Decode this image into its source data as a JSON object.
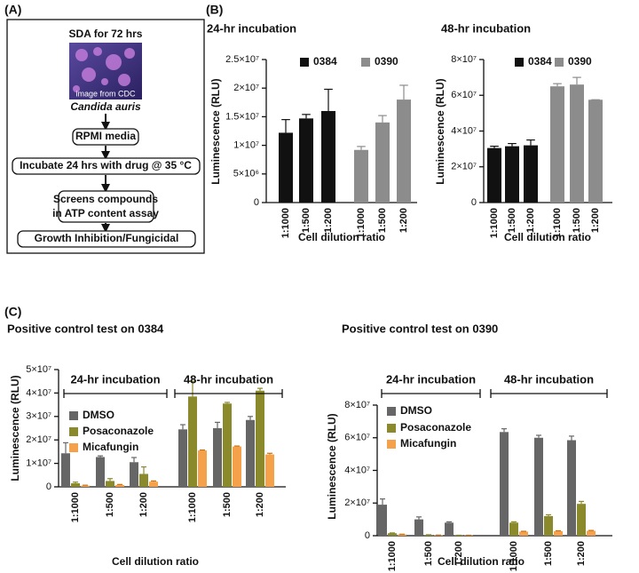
{
  "panel_labels": [
    "(A)",
    "(B)",
    "(C)"
  ],
  "diagram": {
    "nodes": [
      {
        "label": "SDA for 72 hrs"
      },
      {
        "label": "image from CDC"
      },
      {
        "label": "Candida auris"
      },
      {
        "label": "RPMI media"
      },
      {
        "label": "Incubate 24 hrs with drug @ 35 °C"
      },
      {
        "label": [
          "Screens compounds",
          "in ATP content assay"
        ]
      },
      {
        "label": "Growth Inhibition/Fungicidal"
      }
    ]
  },
  "chart_data": [
    {
      "type": "bar",
      "title": "24-hr incubation",
      "y_label": "Luminescence (RLU)",
      "x_label": "Cell dilution ratio",
      "categories": [
        "1:1000",
        "1:500",
        "1:200",
        "1:1000",
        "1:500",
        "1:200"
      ],
      "series": [
        {
          "name": "0384",
          "color": "#111111",
          "values": [
            12200000,
            14700000,
            16000000,
            null,
            null,
            null
          ],
          "errors": [
            2300000,
            700000,
            3800000,
            null,
            null,
            null
          ]
        },
        {
          "name": "0390",
          "color": "#8c8c8c",
          "values": [
            null,
            null,
            null,
            9200000,
            14000000,
            18000000
          ],
          "errors": [
            null,
            null,
            null,
            600000,
            1200000,
            2500000
          ]
        }
      ],
      "ylim": [
        0,
        25000000
      ],
      "yticks": [
        0,
        {
          "value": 5000000,
          "label": "5×10⁶"
        },
        {
          "value": 10000000,
          "label": "1×10⁷"
        },
        {
          "value": 15000000,
          "label": "1.5×10⁷"
        },
        {
          "value": 20000000,
          "label": "2×10⁷"
        },
        {
          "value": 25000000,
          "label": "2.5×10⁷"
        }
      ]
    },
    {
      "type": "bar",
      "title": "48-hr incubation",
      "y_label": "Luminescence (RLU)",
      "x_label": "Cell dilution ratio",
      "categories": [
        "1:1000",
        "1:500",
        "1:200",
        "1:1000",
        "1:500",
        "1:200"
      ],
      "series": [
        {
          "name": "0384",
          "color": "#111111",
          "values": [
            30500000,
            31500000,
            32000000,
            null,
            null,
            null
          ],
          "errors": [
            1000000,
            1500000,
            3000000,
            null,
            null,
            null
          ]
        },
        {
          "name": "0390",
          "color": "#8c8c8c",
          "values": [
            null,
            null,
            null,
            65000000,
            66000000,
            57500000
          ],
          "errors": [
            null,
            null,
            null,
            1500000,
            4000000,
            0
          ]
        }
      ],
      "ylim": [
        0,
        80000000
      ],
      "yticks": [
        0,
        {
          "value": 20000000,
          "label": "2×10⁷"
        },
        {
          "value": 40000000,
          "label": "4×10⁷"
        },
        {
          "value": 60000000,
          "label": "6×10⁷"
        },
        {
          "value": 80000000,
          "label": "8×10⁷"
        }
      ]
    },
    {
      "type": "bar",
      "title": "Positive control test on 0384",
      "y_label": "Luminescence (RLU)",
      "x_label": "Cell dilution ratio",
      "group_labels": [
        "24-hr incubation",
        "48-hr incubation"
      ],
      "categories": [
        "1:1000",
        "1:500",
        "1:200",
        "1:1000",
        "1:500",
        "1:200"
      ],
      "series": [
        {
          "name": "DMSO",
          "color": "#666666",
          "values": [
            14300000,
            12700000,
            10500000,
            24500000,
            25000000,
            28500000
          ],
          "errors": [
            4500000,
            500000,
            2000000,
            2000000,
            2500000,
            1500000
          ]
        },
        {
          "name": "Posaconazole",
          "color": "#8a8a2c",
          "values": [
            1500000,
            2500000,
            5500000,
            38500000,
            35500000,
            41000000
          ],
          "errors": [
            500000,
            1000000,
            3000000,
            6500000,
            500000,
            1000000
          ]
        },
        {
          "name": "Micafungin",
          "color": "#f5a04a",
          "values": [
            500000,
            800000,
            2200000,
            15500000,
            17200000,
            13800000
          ],
          "errors": [
            200000,
            200000,
            300000,
            200000,
            200000,
            500000
          ]
        }
      ],
      "ylim": [
        0,
        50000000
      ],
      "yticks": [
        0,
        {
          "value": 10000000,
          "label": "1×10⁷"
        },
        {
          "value": 20000000,
          "label": "2×10⁷"
        },
        {
          "value": 30000000,
          "label": "3×10⁷"
        },
        {
          "value": 40000000,
          "label": "4×10⁷"
        },
        {
          "value": 50000000,
          "label": "5×10⁷"
        }
      ]
    },
    {
      "type": "bar",
      "title": "Positive control test on 0390",
      "y_label": "Luminescence (RLU)",
      "x_label": "Cell dilution ratio",
      "group_labels": [
        "24-hr incubation",
        "48-hr incubation"
      ],
      "categories": [
        "1:1000",
        "1:500",
        "1:200",
        "1:1000",
        "1:500",
        "1:200"
      ],
      "series": [
        {
          "name": "DMSO",
          "color": "#666666",
          "values": [
            19000000,
            10000000,
            8000000,
            63500000,
            60000000,
            58500000
          ],
          "errors": [
            3500000,
            1500000,
            500000,
            2000000,
            1500000,
            2500000
          ]
        },
        {
          "name": "Posaconazole",
          "color": "#8a8a2c",
          "values": [
            1500000,
            500000,
            200000,
            8000000,
            12000000,
            19500000
          ],
          "errors": [
            200000,
            100000,
            100000,
            500000,
            800000,
            1500000
          ]
        },
        {
          "name": "Micafungin",
          "color": "#f5a04a",
          "values": [
            800000,
            300000,
            200000,
            2500000,
            2800000,
            3000000
          ],
          "errors": [
            100000,
            100000,
            100000,
            200000,
            200000,
            200000
          ]
        }
      ],
      "ylim": [
        0,
        80000000
      ],
      "yticks": [
        0,
        {
          "value": 20000000,
          "label": "2×10⁷"
        },
        {
          "value": 40000000,
          "label": "4×10⁷"
        },
        {
          "value": 60000000,
          "label": "6×10⁷"
        },
        {
          "value": 80000000,
          "label": "8×10⁷"
        }
      ]
    }
  ]
}
